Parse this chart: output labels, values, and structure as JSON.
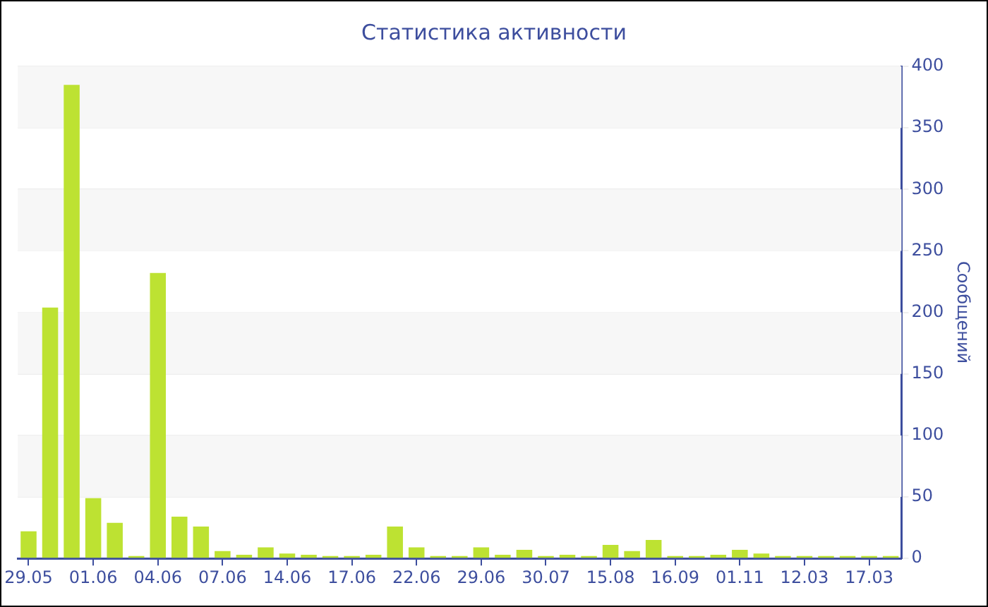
{
  "chart_data": {
    "type": "bar",
    "title": "Статистика активности",
    "ylabel": "Сообщений",
    "categories": [
      "29.05",
      null,
      null,
      "01.06",
      null,
      null,
      "04.06",
      null,
      null,
      "07.06",
      null,
      null,
      "14.06",
      null,
      null,
      "17.06",
      null,
      null,
      "22.06",
      null,
      null,
      "29.06",
      null,
      null,
      "30.07",
      null,
      null,
      "15.08",
      null,
      null,
      "16.09",
      null,
      null,
      "01.11",
      null,
      null,
      "12.03",
      null,
      null,
      "17.03",
      null
    ],
    "values": [
      22,
      204,
      385,
      49,
      29,
      2,
      232,
      34,
      26,
      6,
      3,
      9,
      4,
      3,
      2,
      2,
      3,
      26,
      9,
      2,
      2,
      9,
      3,
      7,
      2,
      3,
      2,
      11,
      6,
      15,
      2,
      2,
      3,
      7,
      4,
      2,
      2,
      2,
      2,
      2,
      2
    ],
    "color": "#bde232",
    "ylim": [
      0,
      400
    ],
    "yticks": [
      0,
      50,
      100,
      150,
      200,
      250,
      300,
      350,
      400
    ],
    "grid": true,
    "legend": false
  }
}
